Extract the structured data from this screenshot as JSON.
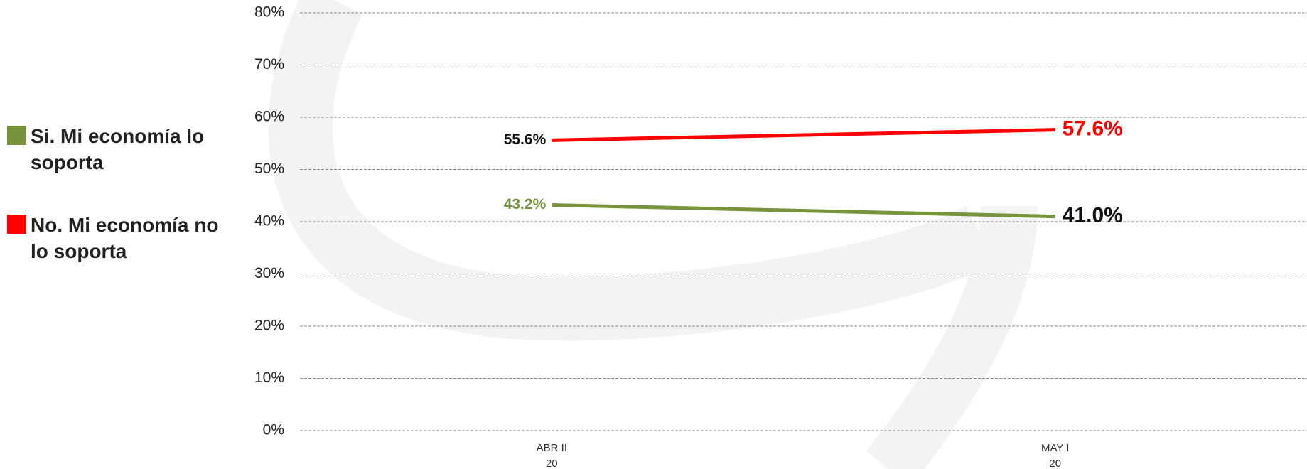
{
  "chart_data": {
    "type": "line",
    "categories": [
      "ABR II\n20",
      "MAY I\n20"
    ],
    "series": [
      {
        "name": "Si. Mi economía lo soporta",
        "color": "#77933c",
        "values": [
          43.2,
          41.0
        ],
        "value_labels": [
          "43.2%",
          "41.0%"
        ]
      },
      {
        "name": "No. Mi economía no lo soporta",
        "color": "#ff0000",
        "values": [
          55.6,
          57.6
        ],
        "value_labels": [
          "55.6%",
          "57.6%"
        ]
      }
    ],
    "ylim": [
      0,
      80
    ],
    "yticks": [
      {
        "value": 0,
        "label": "0%"
      },
      {
        "value": 10,
        "label": "10%"
      },
      {
        "value": 20,
        "label": "20%"
      },
      {
        "value": 30,
        "label": "30%"
      },
      {
        "value": 40,
        "label": "40%"
      },
      {
        "value": 50,
        "label": "50%"
      },
      {
        "value": 60,
        "label": "60%"
      },
      {
        "value": 70,
        "label": "70%"
      },
      {
        "value": 80,
        "label": "80%"
      }
    ],
    "grid": true,
    "legend": "left"
  }
}
